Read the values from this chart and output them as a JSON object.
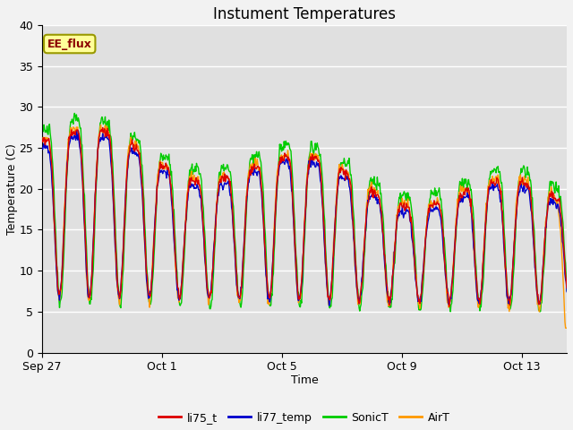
{
  "title": "Instument Temperatures",
  "xlabel": "Time",
  "ylabel": "Temperature (C)",
  "ylim": [
    0,
    40
  ],
  "annotation_text": "EE_flux",
  "annotation_color": "#8B0000",
  "annotation_bg": "#FFFF99",
  "annotation_border": "#999900",
  "series_colors": {
    "li75_t": "#DD0000",
    "li77_temp": "#0000CC",
    "SonicT": "#00CC00",
    "AirT": "#FF9900"
  },
  "background_color": "#E0E0E0",
  "grid_color": "#FFFFFF",
  "fig_bg": "#F2F2F2",
  "title_fontsize": 12,
  "axis_label_fontsize": 9,
  "tick_label_fontsize": 9,
  "legend_fontsize": 9,
  "x_ticks_labels": [
    "Sep 27",
    "Oct 1",
    "Oct 5",
    "Oct 9",
    "Oct 13"
  ],
  "x_ticks_positions": [
    0,
    4,
    8,
    12,
    16
  ]
}
